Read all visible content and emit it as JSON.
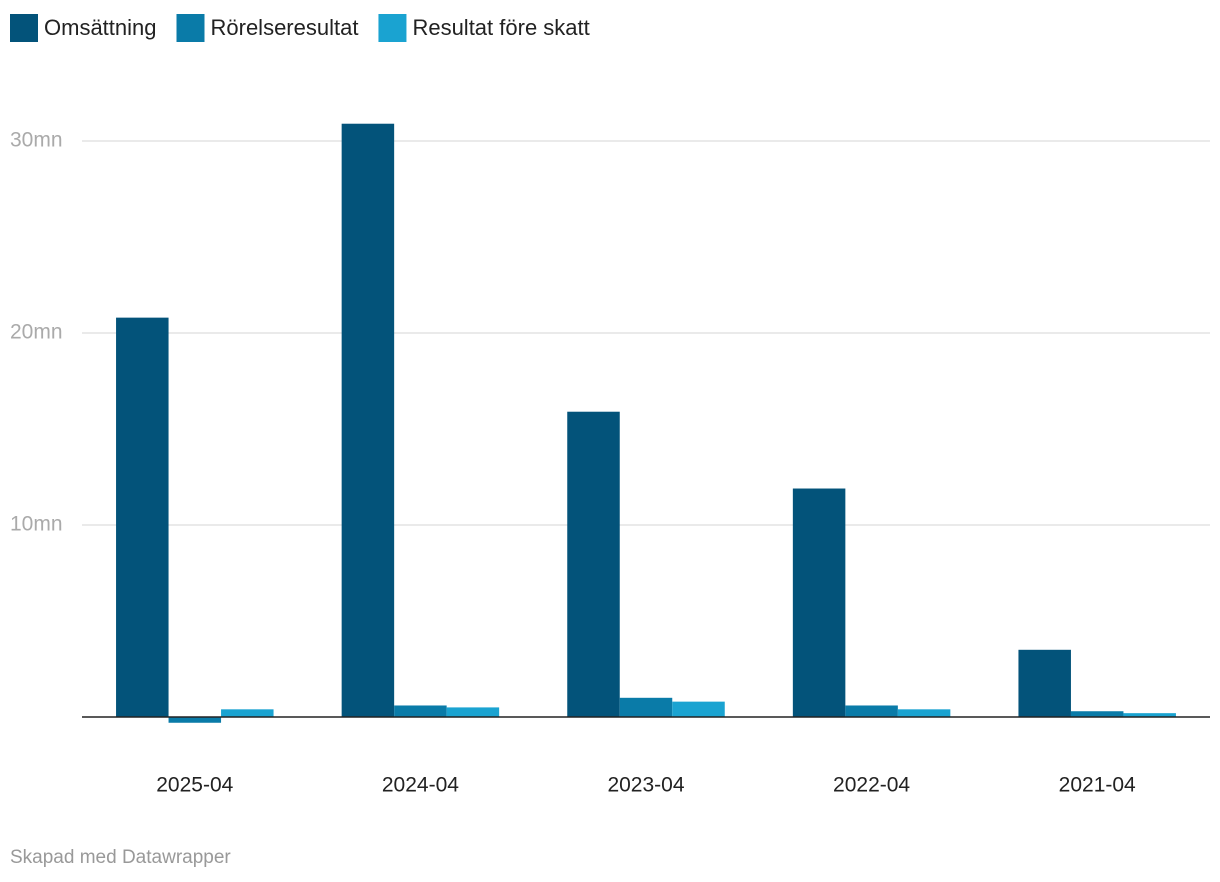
{
  "chart_data": {
    "type": "bar",
    "categories": [
      "2025-04",
      "2024-04",
      "2023-04",
      "2022-04",
      "2021-04"
    ],
    "series": [
      {
        "name": "Omsättning",
        "color": "#03537a",
        "values": [
          20.8,
          30.9,
          15.9,
          11.9,
          3.5
        ]
      },
      {
        "name": "Rörelseresultat",
        "color": "#0a7ba8",
        "values": [
          -0.3,
          0.6,
          1.0,
          0.6,
          0.3
        ]
      },
      {
        "name": "Resultat före skatt",
        "color": "#1aa3d1",
        "values": [
          0.4,
          0.5,
          0.8,
          0.4,
          0.2
        ]
      }
    ],
    "ylim": [
      -1,
      33
    ],
    "yticks": [
      {
        "value": 10,
        "label": "10mn"
      },
      {
        "value": 20,
        "label": "20mn"
      },
      {
        "value": 30,
        "label": "30mn"
      }
    ],
    "grid": true,
    "legend": "top",
    "footer": "Skapad med Datawrapper"
  }
}
